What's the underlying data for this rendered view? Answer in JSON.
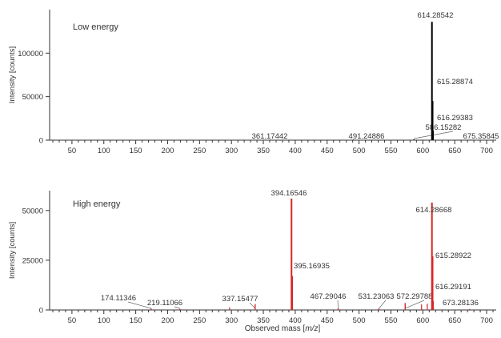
{
  "figure": {
    "xlabel_prefix": "Observed mass [",
    "xlabel_italic": "m/z",
    "xlabel_suffix": "]"
  },
  "chart_data": [
    {
      "type": "spectrum",
      "title": "Low energy",
      "ylabel": "Intensity [counts]",
      "xlim": [
        15,
        715
      ],
      "ylim": [
        0,
        150000
      ],
      "x_ticks": [
        50,
        100,
        150,
        200,
        250,
        300,
        350,
        400,
        450,
        500,
        550,
        600,
        650,
        700
      ],
      "y_ticks": [
        0,
        50000,
        100000
      ],
      "grid": false,
      "color": "#000000",
      "peaks": [
        {
          "x": 361.17442,
          "y": 500,
          "label": "361.17442"
        },
        {
          "x": 491.24886,
          "y": 700,
          "label": "491.24886"
        },
        {
          "x": 586.15282,
          "y": 900,
          "label": "586.15282"
        },
        {
          "x": 614.28542,
          "y": 136000,
          "label": "614.28542"
        },
        {
          "x": 615.28874,
          "y": 45000,
          "label": "615.28874"
        },
        {
          "x": 616.29383,
          "y": 11000,
          "label": "616.29383"
        },
        {
          "x": 675.35845,
          "y": 500,
          "label": "675.35845"
        }
      ]
    },
    {
      "type": "spectrum",
      "title": "High energy",
      "ylabel": "Intensity [counts]",
      "xlim": [
        15,
        715
      ],
      "ylim": [
        0,
        60000
      ],
      "x_ticks": [
        50,
        100,
        150,
        200,
        250,
        300,
        350,
        400,
        450,
        500,
        550,
        600,
        650,
        700
      ],
      "y_ticks": [
        0,
        25000,
        50000
      ],
      "grid": false,
      "color": "#d62728",
      "peaks": [
        {
          "x": 174.11346,
          "y": 800,
          "label": "174.11346"
        },
        {
          "x": 219.11066,
          "y": 600,
          "label": "219.11066"
        },
        {
          "x": 337.15477,
          "y": 3000,
          "label": "337.15477"
        },
        {
          "x": 394.16546,
          "y": 56000,
          "label": "394.16546"
        },
        {
          "x": 395.16935,
          "y": 17000,
          "label": "395.16935"
        },
        {
          "x": 467.29046,
          "y": 900,
          "label": "467.29046"
        },
        {
          "x": 531.23063,
          "y": 800,
          "label": "531.23063"
        },
        {
          "x": 572.29788,
          "y": 3500,
          "label": "572.29788"
        },
        {
          "x": 614.28668,
          "y": 54000,
          "label": "614.28668"
        },
        {
          "x": 615.28922,
          "y": 27000,
          "label": "615.28922"
        },
        {
          "x": 616.29191,
          "y": 4500,
          "label": "616.29191"
        },
        {
          "x": 673.28136,
          "y": 500,
          "label": "673.28136"
        }
      ],
      "minor_peaks": [
        {
          "x": 297,
          "y": 1300
        },
        {
          "x": 598,
          "y": 2800
        },
        {
          "x": 607,
          "y": 3200
        }
      ]
    }
  ]
}
